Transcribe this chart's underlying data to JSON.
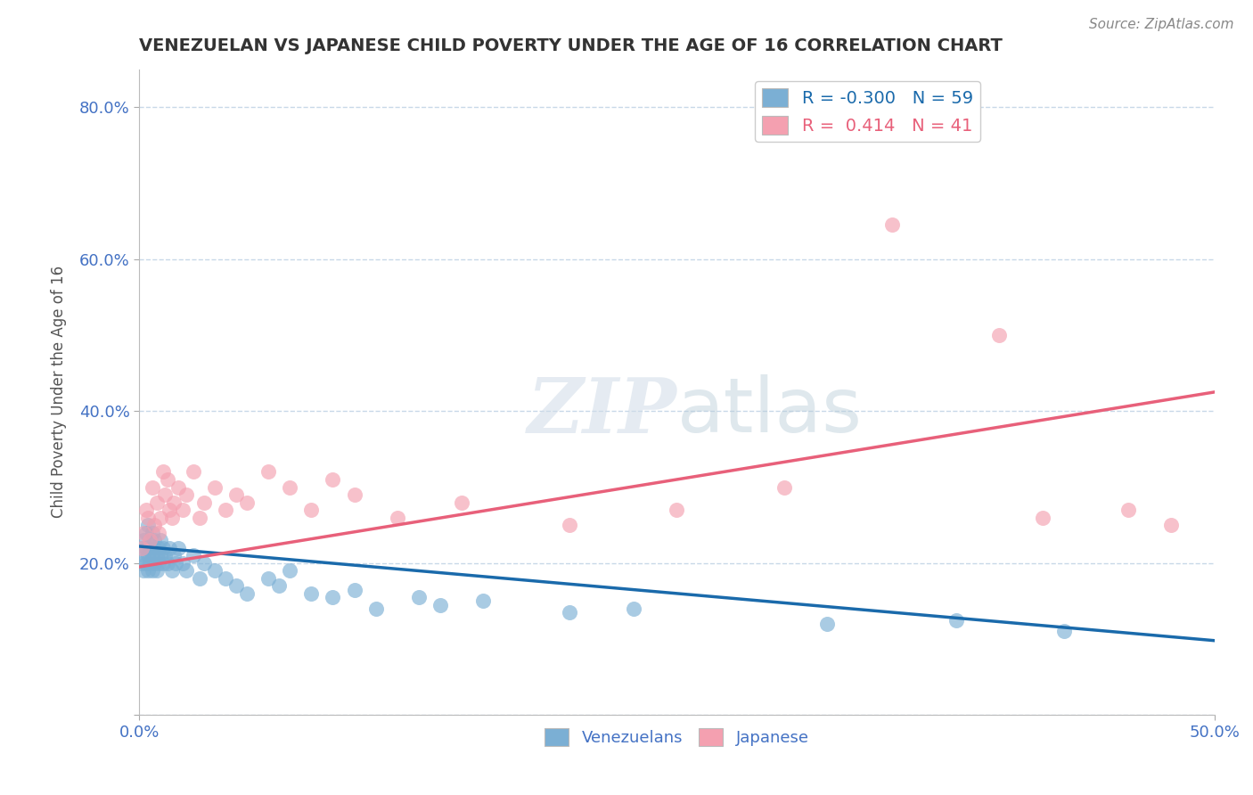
{
  "title": "VENEZUELAN VS JAPANESE CHILD POVERTY UNDER THE AGE OF 16 CORRELATION CHART",
  "source": "Source: ZipAtlas.com",
  "ylabel": "Child Poverty Under the Age of 16",
  "xlim": [
    0.0,
    0.5
  ],
  "ylim": [
    0.0,
    0.85
  ],
  "yticks": [
    0.0,
    0.2,
    0.4,
    0.6,
    0.8
  ],
  "yticklabels": [
    "",
    "20.0%",
    "40.0%",
    "60.0%",
    "80.0%"
  ],
  "xticks": [
    0.0,
    0.5
  ],
  "xticklabels": [
    "0.0%",
    "50.0%"
  ],
  "background_color": "#ffffff",
  "grid_color": "#c8d8e8",
  "watermark": "ZIPatlas",
  "legend_R_blue": "-0.300",
  "legend_N_blue": "59",
  "legend_R_pink": "0.414",
  "legend_N_pink": "41",
  "blue_color": "#7bafd4",
  "pink_color": "#f4a0b0",
  "blue_line_color": "#1a6aab",
  "pink_line_color": "#e8607a",
  "axis_color": "#4472c4",
  "blue_trend_x0": 0.0,
  "blue_trend_y0": 0.222,
  "blue_trend_x1": 0.5,
  "blue_trend_y1": 0.098,
  "pink_trend_x0": 0.0,
  "pink_trend_y0": 0.195,
  "pink_trend_x1": 0.5,
  "pink_trend_y1": 0.425,
  "venezuelan_x": [
    0.001,
    0.001,
    0.002,
    0.002,
    0.002,
    0.003,
    0.003,
    0.003,
    0.004,
    0.004,
    0.004,
    0.005,
    0.005,
    0.005,
    0.006,
    0.006,
    0.006,
    0.007,
    0.007,
    0.007,
    0.008,
    0.008,
    0.009,
    0.009,
    0.01,
    0.01,
    0.011,
    0.011,
    0.012,
    0.013,
    0.014,
    0.015,
    0.016,
    0.017,
    0.018,
    0.02,
    0.022,
    0.025,
    0.028,
    0.03,
    0.035,
    0.04,
    0.045,
    0.05,
    0.06,
    0.065,
    0.07,
    0.08,
    0.09,
    0.1,
    0.11,
    0.13,
    0.14,
    0.16,
    0.2,
    0.23,
    0.32,
    0.38,
    0.43
  ],
  "venezuelan_y": [
    0.22,
    0.2,
    0.23,
    0.19,
    0.21,
    0.24,
    0.2,
    0.22,
    0.25,
    0.19,
    0.21,
    0.23,
    0.2,
    0.22,
    0.21,
    0.24,
    0.19,
    0.22,
    0.2,
    0.23,
    0.21,
    0.19,
    0.22,
    0.2,
    0.21,
    0.23,
    0.2,
    0.22,
    0.21,
    0.2,
    0.22,
    0.19,
    0.21,
    0.2,
    0.22,
    0.2,
    0.19,
    0.21,
    0.18,
    0.2,
    0.19,
    0.18,
    0.17,
    0.16,
    0.18,
    0.17,
    0.19,
    0.16,
    0.155,
    0.165,
    0.14,
    0.155,
    0.145,
    0.15,
    0.135,
    0.14,
    0.12,
    0.125,
    0.11
  ],
  "japanese_x": [
    0.001,
    0.002,
    0.003,
    0.004,
    0.005,
    0.006,
    0.007,
    0.008,
    0.009,
    0.01,
    0.011,
    0.012,
    0.013,
    0.014,
    0.015,
    0.016,
    0.018,
    0.02,
    0.022,
    0.025,
    0.028,
    0.03,
    0.035,
    0.04,
    0.045,
    0.05,
    0.06,
    0.07,
    0.08,
    0.09,
    0.1,
    0.12,
    0.15,
    0.2,
    0.25,
    0.3,
    0.35,
    0.4,
    0.42,
    0.46,
    0.48
  ],
  "japanese_y": [
    0.22,
    0.24,
    0.27,
    0.26,
    0.23,
    0.3,
    0.25,
    0.28,
    0.24,
    0.26,
    0.32,
    0.29,
    0.31,
    0.27,
    0.26,
    0.28,
    0.3,
    0.27,
    0.29,
    0.32,
    0.26,
    0.28,
    0.3,
    0.27,
    0.29,
    0.28,
    0.32,
    0.3,
    0.27,
    0.31,
    0.29,
    0.26,
    0.28,
    0.25,
    0.27,
    0.3,
    0.645,
    0.5,
    0.26,
    0.27,
    0.25
  ]
}
